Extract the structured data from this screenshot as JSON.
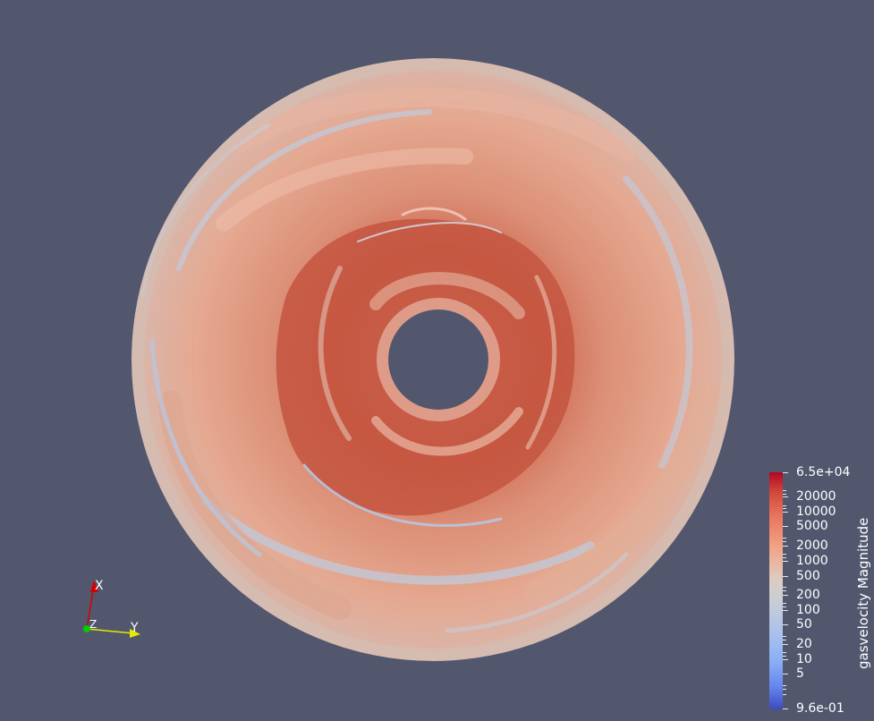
{
  "viewport": {
    "background": "#52576e"
  },
  "colorbar": {
    "title": "gasvelocity Magnitude",
    "labels": {
      "max": "6.5e+04",
      "l20000": "20000",
      "l10000": "10000",
      "l5000": "5000",
      "l2000": "2000",
      "l1000": "1000",
      "l500": "500",
      "l200": "200",
      "l100": "100",
      "l50": "50",
      "l20": "20",
      "l10": "10",
      "l5": "5",
      "min": "9.6e-01"
    },
    "colors": {
      "high": "#b40426",
      "mid": "#dddddd",
      "low": "#3b4cc0"
    }
  },
  "orientation_axes": {
    "x_label": "X",
    "y_label": "Y",
    "z_label": "Z",
    "x_color": "#d40000",
    "y_color": "#e8e800",
    "z_color": "#00cc00"
  }
}
